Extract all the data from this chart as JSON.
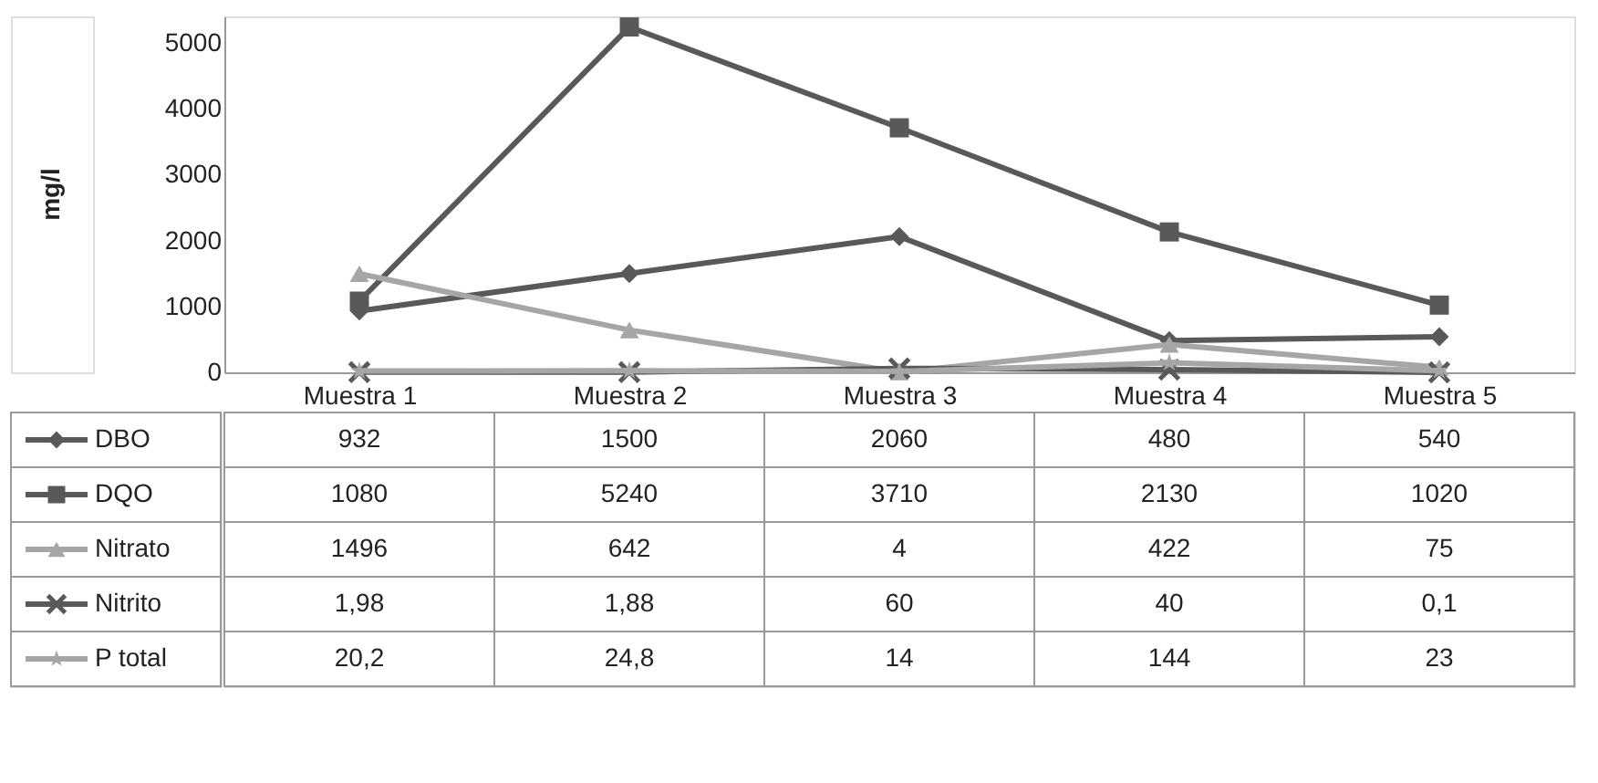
{
  "chart_data": {
    "type": "line",
    "ylabel": "mg/l",
    "categories": [
      "Muestra 1",
      "Muestra 2",
      "Muestra 3",
      "Muestra 4",
      "Muestra 5"
    ],
    "ylim": [
      0,
      5400
    ],
    "yticks": [
      0,
      1000,
      2000,
      3000,
      4000,
      5000
    ],
    "grid": false,
    "legend": "bottom",
    "line_style": "solid",
    "series": [
      {
        "name": "DBO",
        "color": "#595959",
        "marker": "diamond",
        "values": [
          932,
          1500,
          2060,
          480,
          540
        ],
        "value_labels": [
          "932",
          "1500",
          "2060",
          "480",
          "540"
        ]
      },
      {
        "name": "DQO",
        "color": "#595959",
        "marker": "square",
        "values": [
          1080,
          5240,
          3710,
          2130,
          1020
        ],
        "value_labels": [
          "1080",
          "5240",
          "3710",
          "2130",
          "1020"
        ]
      },
      {
        "name": "Nitrato",
        "color": "#a6a6a6",
        "marker": "triangle",
        "values": [
          1496,
          642,
          4,
          422,
          75
        ],
        "value_labels": [
          "1496",
          "642",
          "4",
          "422",
          "75"
        ]
      },
      {
        "name": "Nitrito",
        "color": "#595959",
        "marker": "cross",
        "values": [
          1.98,
          1.88,
          60,
          40,
          0.1
        ],
        "value_labels": [
          "1,98",
          "1,88",
          "60",
          "40",
          "0,1"
        ]
      },
      {
        "name": "P total",
        "color": "#a6a6a6",
        "marker": "star",
        "values": [
          20.2,
          24.8,
          14,
          144,
          23
        ],
        "value_labels": [
          "20,2",
          "24,8",
          "14",
          "144",
          "23"
        ]
      }
    ]
  }
}
